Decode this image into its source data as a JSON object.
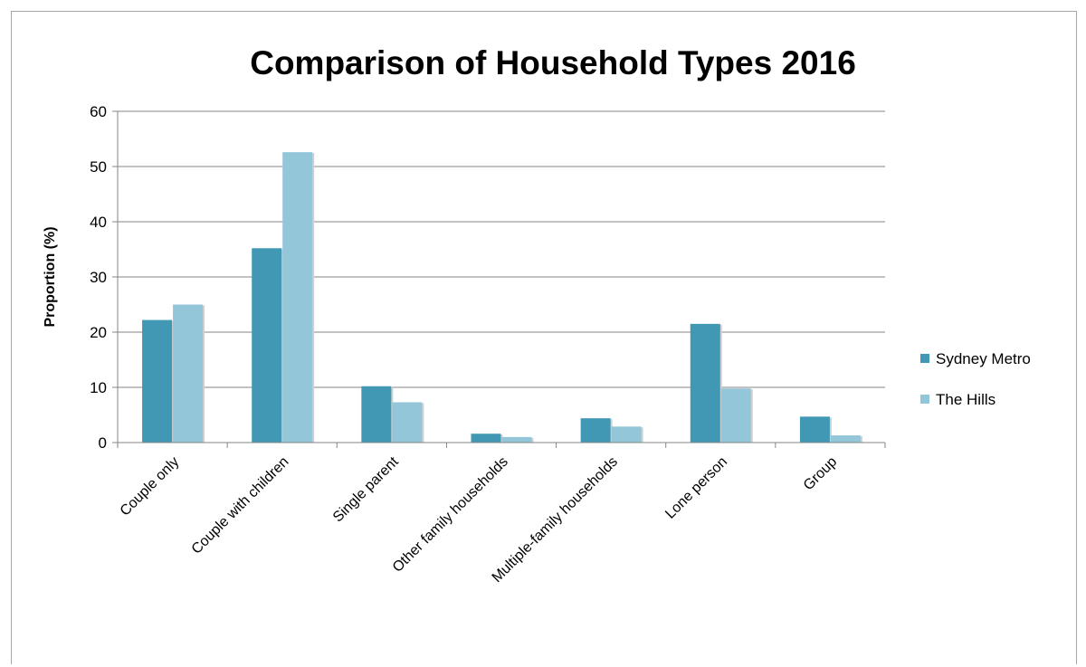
{
  "chart_data": {
    "type": "bar",
    "title": "Comparison of Household Types 2016",
    "xlabel": "",
    "ylabel": "Proportion (%)",
    "ylim": [
      0,
      60
    ],
    "yticks": [
      "0",
      "10",
      "20",
      "30",
      "40",
      "50",
      "60"
    ],
    "grid": true,
    "legend_position": "right",
    "categories": [
      "Couple only",
      "Couple with children",
      "Single parent",
      "Other family households",
      "Multiple-family households",
      "Lone person",
      "Group"
    ],
    "series": [
      {
        "name": "Sydney Metro",
        "color": "#4198b4",
        "values": [
          22.2,
          35.2,
          10.2,
          1.6,
          4.4,
          21.5,
          4.7
        ]
      },
      {
        "name": "The Hills",
        "color": "#93c6d8",
        "values": [
          25.0,
          52.6,
          7.3,
          1.0,
          2.9,
          9.8,
          1.3
        ]
      }
    ]
  }
}
